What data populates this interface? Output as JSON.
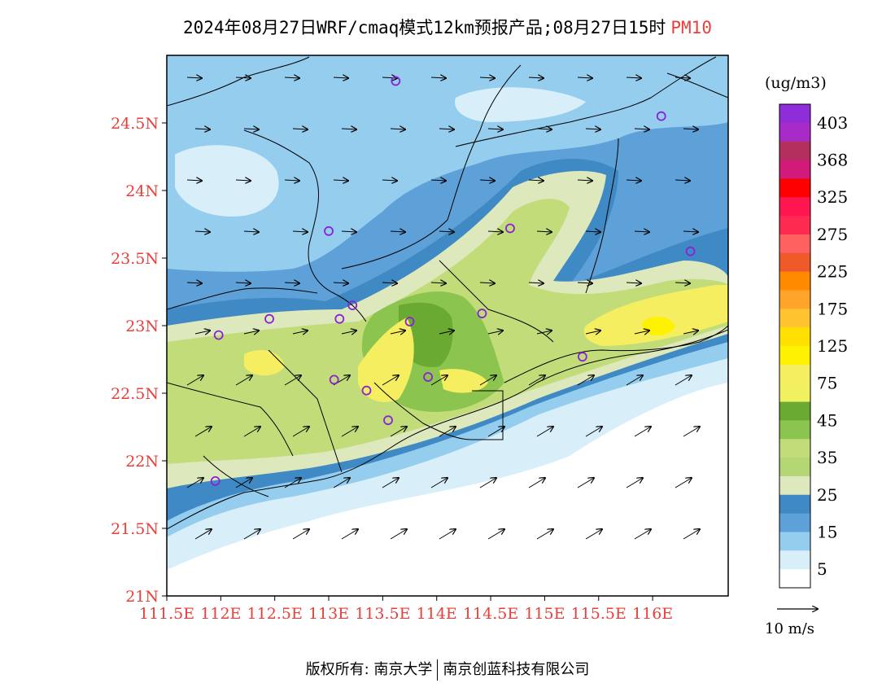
{
  "title": {
    "main": "2024年08月27日WRF/cmaq模式12km预报产品;08月27日15时",
    "species": "PM10"
  },
  "map": {
    "lat_ticks": [
      {
        "value": 24.5,
        "label": "24.5N"
      },
      {
        "value": 24.0,
        "label": "24N"
      },
      {
        "value": 23.5,
        "label": "23.5N"
      },
      {
        "value": 23.0,
        "label": "23N"
      },
      {
        "value": 22.5,
        "label": "22.5N"
      },
      {
        "value": 22.0,
        "label": "22N"
      },
      {
        "value": 21.5,
        "label": "21.5N"
      },
      {
        "value": 21.0,
        "label": "21N"
      }
    ],
    "lon_ticks": [
      {
        "value": 111.5,
        "label": "111.5E"
      },
      {
        "value": 112.0,
        "label": "112E"
      },
      {
        "value": 112.5,
        "label": "112.5E"
      },
      {
        "value": 113.0,
        "label": "113E"
      },
      {
        "value": 113.5,
        "label": "113.5E"
      },
      {
        "value": 114.0,
        "label": "114E"
      },
      {
        "value": 114.5,
        "label": "114.5E"
      },
      {
        "value": 115.0,
        "label": "115E"
      },
      {
        "value": 115.5,
        "label": "115.5E"
      },
      {
        "value": 116.0,
        "label": "116E"
      }
    ],
    "lat_range": [
      21.0,
      25.0
    ],
    "lon_range": [
      111.5,
      116.7
    ],
    "stations": [
      [
        113.62,
        24.81
      ],
      [
        116.08,
        24.55
      ],
      [
        113.0,
        23.7
      ],
      [
        114.68,
        23.72
      ],
      [
        116.35,
        23.55
      ],
      [
        113.22,
        23.15
      ],
      [
        113.1,
        23.05
      ],
      [
        112.45,
        23.05
      ],
      [
        111.98,
        22.93
      ],
      [
        113.75,
        23.03
      ],
      [
        114.42,
        23.09
      ],
      [
        113.05,
        22.6
      ],
      [
        113.35,
        22.52
      ],
      [
        113.92,
        22.62
      ],
      [
        113.55,
        22.3
      ],
      [
        115.35,
        22.77
      ],
      [
        111.95,
        21.85
      ]
    ]
  },
  "colorbar": {
    "unit": "(ug/m3)",
    "bins": [
      {
        "color": "#8f2ed8",
        "label": "403"
      },
      {
        "color": "#a82bc8",
        "label": ""
      },
      {
        "color": "#b22f5e",
        "label": "368"
      },
      {
        "color": "#d11a7a",
        "label": ""
      },
      {
        "color": "#ff0000",
        "label": "325"
      },
      {
        "color": "#ff1650",
        "label": ""
      },
      {
        "color": "#ff2a50",
        "label": "275"
      },
      {
        "color": "#ff6060",
        "label": ""
      },
      {
        "color": "#f05a2a",
        "label": "225"
      },
      {
        "color": "#ff8a00",
        "label": ""
      },
      {
        "color": "#ffa428",
        "label": "175"
      },
      {
        "color": "#ffc430",
        "label": ""
      },
      {
        "color": "#ffe000",
        "label": "125"
      },
      {
        "color": "#fff200",
        "label": ""
      },
      {
        "color": "#f5ee60",
        "label": "75"
      },
      {
        "color": "#f0f060",
        "label": ""
      },
      {
        "color": "#6aaa32",
        "label": "45"
      },
      {
        "color": "#8cc450",
        "label": ""
      },
      {
        "color": "#c2dc7a",
        "label": "35"
      },
      {
        "color": "#b4d674",
        "label": ""
      },
      {
        "color": "#dde8bc",
        "label": "25"
      },
      {
        "color": "#3f8ac4",
        "label": ""
      },
      {
        "color": "#5ea0d8",
        "label": "15"
      },
      {
        "color": "#94cdee",
        "label": ""
      },
      {
        "color": "#d8effa",
        "label": "5"
      },
      {
        "color": "#ffffff",
        "label": ""
      }
    ]
  },
  "wind_reference": {
    "label": "10 m/s"
  },
  "footer": {
    "copyright": "版权所有: 南京大学",
    "company": "南京创蓝科技有限公司"
  },
  "colors": {
    "axis_label": "#e8403a",
    "station": "#8a22d6"
  }
}
